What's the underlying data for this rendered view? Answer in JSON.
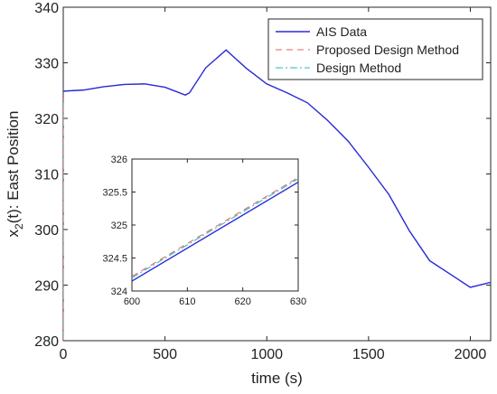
{
  "chart_data": [
    {
      "type": "line",
      "xlabel": "time (s)",
      "ylabel": "x",
      "ylabel_sub": "2",
      "ylabel_tail": "(t): East Position",
      "xlim": [
        0,
        2100
      ],
      "ylim": [
        280,
        340
      ],
      "xticks": [
        0,
        500,
        1000,
        1500,
        2000
      ],
      "yticks": [
        280,
        290,
        300,
        310,
        320,
        330,
        340
      ],
      "grid": false,
      "legend_position": "top-right",
      "series": [
        {
          "name": "AIS Data",
          "color": "#2b2bd9",
          "dash": "solid",
          "x": [
            0,
            100,
            200,
            300,
            400,
            500,
            600,
            620,
            700,
            800,
            900,
            1000,
            1100,
            1200,
            1300,
            1400,
            1500,
            1600,
            1700,
            1800,
            1900,
            2000,
            2100
          ],
          "y": [
            324.9,
            325.1,
            325.7,
            326.1,
            326.2,
            325.6,
            324.2,
            324.6,
            329.1,
            332.3,
            329.0,
            326.2,
            324.6,
            322.8,
            319.6,
            315.9,
            311.2,
            306.3,
            299.8,
            294.4,
            292.0,
            289.6,
            290.5
          ]
        },
        {
          "name": "Proposed Design Method",
          "color": "#e06060",
          "dash": "dashed",
          "x": [
            0,
            0,
            2,
            100,
            200,
            300,
            400,
            500,
            600,
            620,
            700,
            800,
            900,
            1000,
            1100,
            1200,
            1300,
            1400,
            1500,
            1600,
            1700,
            1800,
            1900,
            2000,
            2100
          ],
          "y": [
            280.0,
            322.0,
            324.9,
            325.1,
            325.7,
            326.1,
            326.2,
            325.6,
            324.2,
            324.6,
            329.1,
            332.3,
            329.0,
            326.2,
            324.6,
            322.8,
            319.6,
            315.9,
            311.2,
            306.3,
            299.8,
            294.4,
            292.0,
            289.6,
            290.5
          ]
        },
        {
          "name": "Design Method",
          "color": "#20b8b8",
          "dash": "dashdot",
          "x": [
            0,
            0,
            2,
            100,
            200,
            300,
            400,
            500,
            600,
            620,
            700,
            800,
            900,
            1000,
            1100,
            1200,
            1300,
            1400,
            1500,
            1600,
            1700,
            1800,
            1900,
            2000,
            2100
          ],
          "y": [
            280.5,
            322.0,
            324.9,
            325.1,
            325.7,
            326.1,
            326.2,
            325.6,
            324.2,
            324.6,
            329.1,
            332.3,
            329.0,
            326.2,
            324.6,
            322.8,
            319.6,
            315.9,
            311.2,
            306.3,
            299.8,
            294.4,
            292.0,
            289.6,
            290.5
          ]
        }
      ]
    },
    {
      "type": "line",
      "xlim": [
        600,
        630
      ],
      "ylim": [
        324,
        326
      ],
      "xticks": [
        600,
        610,
        620,
        630
      ],
      "yticks": [
        324,
        324.5,
        325,
        325.5,
        326
      ],
      "grid": false,
      "series": [
        {
          "name": "AIS Data",
          "color": "#2b2bd9",
          "dash": "solid",
          "x": [
            600,
            630
          ],
          "y": [
            324.15,
            325.65
          ]
        },
        {
          "name": "Proposed Design Method",
          "color": "#e06060",
          "dash": "dashed",
          "x": [
            600,
            630
          ],
          "y": [
            324.22,
            325.72
          ]
        },
        {
          "name": "Design Method",
          "color": "#20b8b8",
          "dash": "dashdot",
          "x": [
            600,
            630
          ],
          "y": [
            324.2,
            325.7
          ]
        }
      ]
    }
  ]
}
